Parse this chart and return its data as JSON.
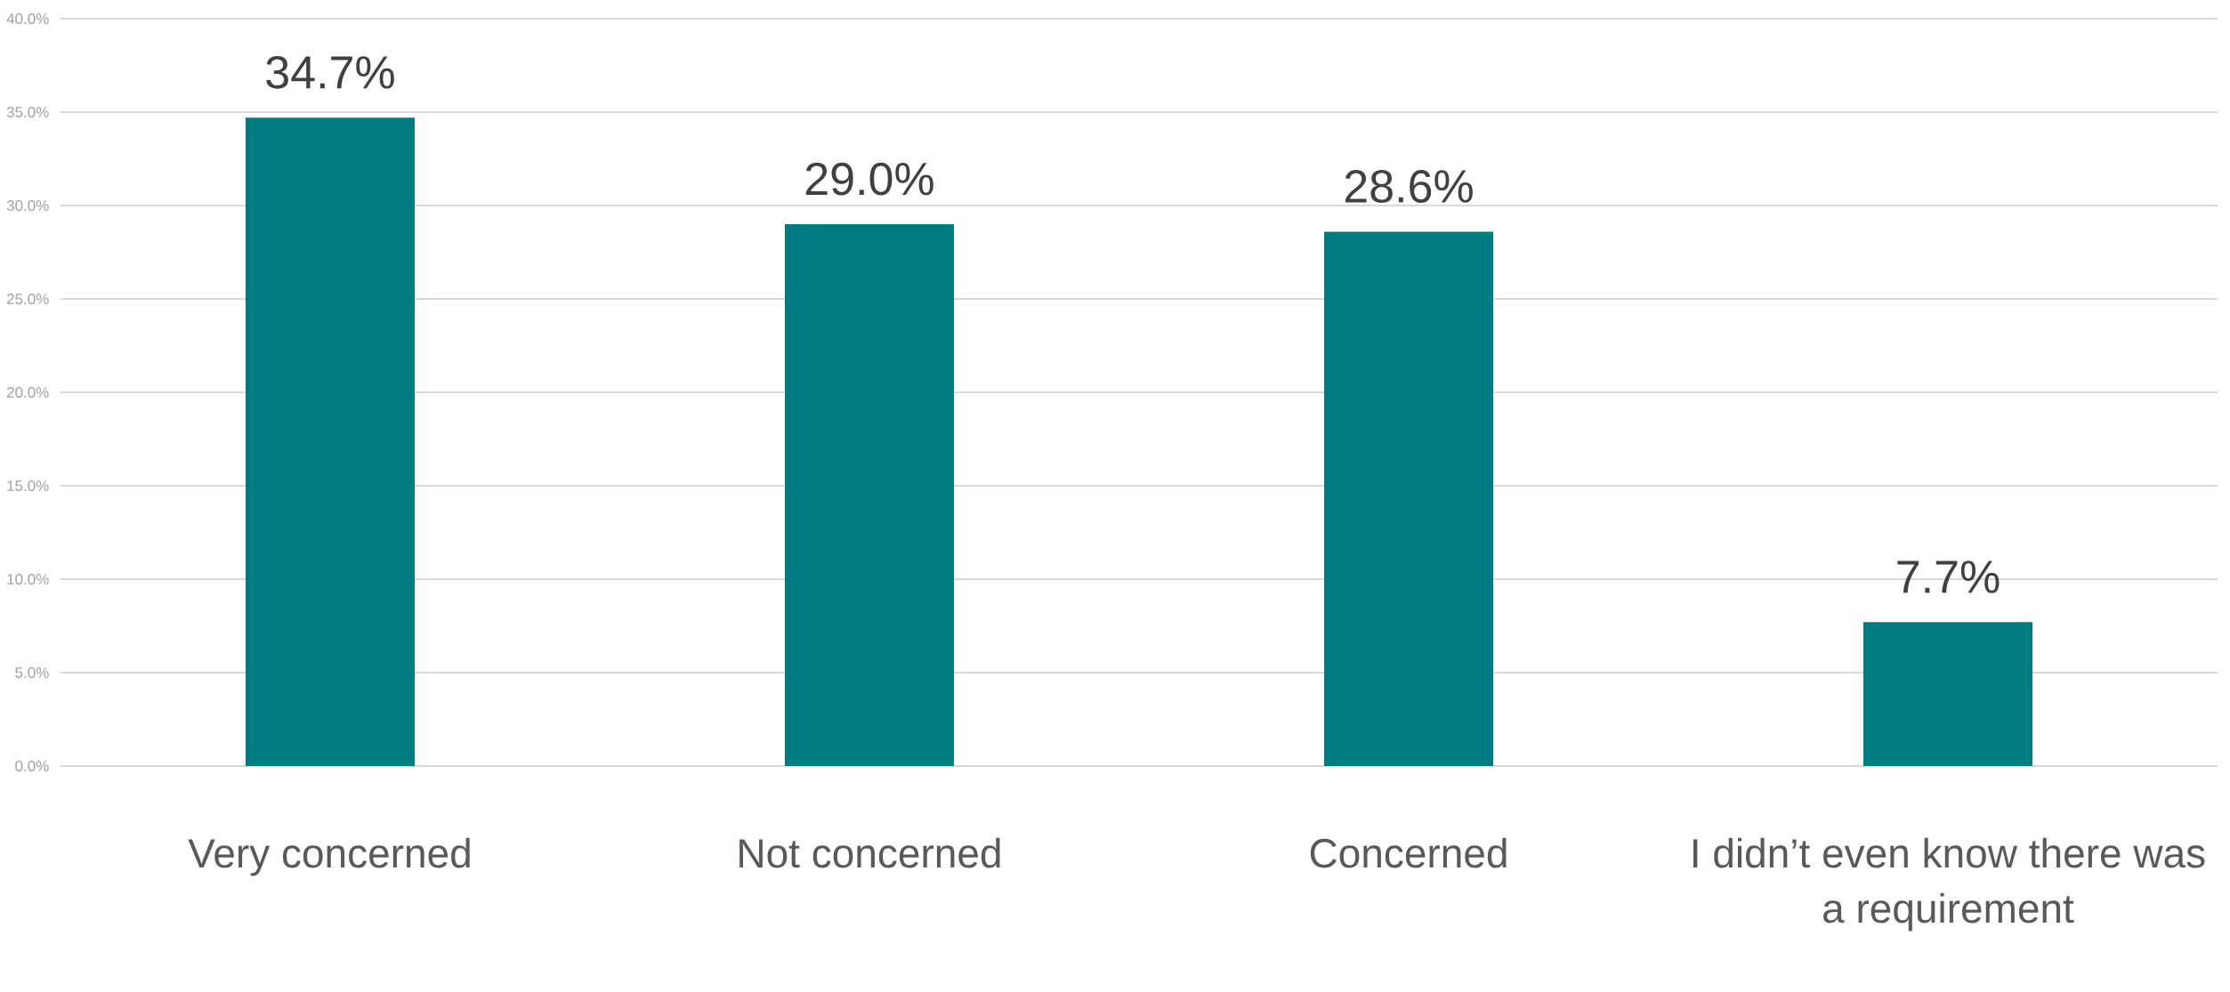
{
  "chart_data": {
    "type": "bar",
    "categories": [
      "Very concerned",
      "Not concerned",
      "Concerned",
      "I didn’t even know there was a requirement"
    ],
    "values": [
      34.7,
      29.0,
      28.6,
      7.7
    ],
    "value_labels": [
      "34.7%",
      "29.0%",
      "28.6%",
      "7.7%"
    ],
    "color": "#007b7f",
    "ylim": [
      0,
      40
    ],
    "yticks": [
      {
        "value": 0,
        "label": "0.0%"
      },
      {
        "value": 5,
        "label": "5.0%"
      },
      {
        "value": 10,
        "label": "10.0%"
      },
      {
        "value": 15,
        "label": "15.0%"
      },
      {
        "value": 20,
        "label": "20.0%"
      },
      {
        "value": 25,
        "label": "25.0%"
      },
      {
        "value": 30,
        "label": "30.0%"
      },
      {
        "value": 35,
        "label": "35.0%"
      },
      {
        "value": 40,
        "label": "40.0%"
      }
    ],
    "grid": "y"
  }
}
